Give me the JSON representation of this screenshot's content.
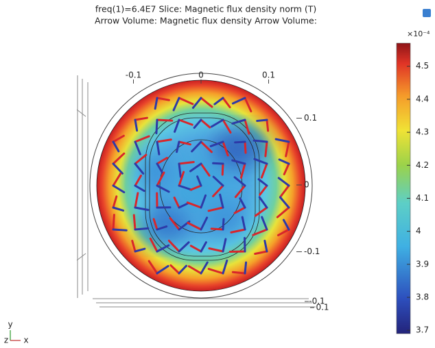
{
  "chart_data": {
    "type": "slice",
    "title": "freq(1)=6.4E7   Slice: Magnetic flux density norm (T)",
    "subtitle": "Arrow Volume: Magnetic flux density  Arrow Volume:",
    "xticks": [
      -0.1,
      0,
      0.1
    ],
    "yticks": [
      0.1,
      0,
      -0.1
    ],
    "zticks": [
      -0.1,
      0.1
    ],
    "axis_triad": [
      "y",
      "z",
      "x"
    ],
    "colorbar": {
      "colormap": "Rainbow",
      "exponent_label": "×10⁻⁴",
      "clim": [
        3.69,
        4.57
      ],
      "ticks": [
        3.7,
        3.8,
        3.9,
        4,
        4.1,
        4.2,
        4.3,
        4.4,
        4.5
      ]
    }
  }
}
